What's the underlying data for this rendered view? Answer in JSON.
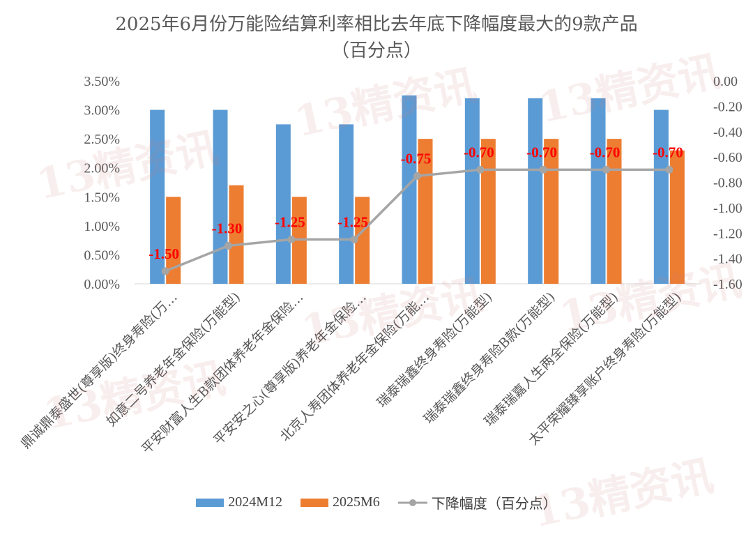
{
  "chart_data": {
    "type": "bar",
    "title": "2025年6月份万能险结算利率相比去年底下降幅度最大的9款产品",
    "subtitle": "（百分点）",
    "categories": [
      "鼎诚鼎泰盛世(尊享版)终身寿险(万…",
      "如意二号养老年金保险(万能型)",
      "平安财富人生B款团体养老年金保险…",
      "平安安之心(尊享版)养老年金保险…",
      "北京人寿团体养老年金保险(万能…",
      "瑞泰瑞鑫终身寿险(万能型)",
      "瑞泰瑞鑫终身寿险B款(万能型)",
      "瑞泰瑞嘉人生两全保险(万能型)",
      "太平荣耀臻享账户终身寿险(万能型)"
    ],
    "series": [
      {
        "name": "2024M12",
        "type": "bar",
        "axis": "left",
        "color": "#5b9bd5",
        "values": [
          3.0,
          3.0,
          2.75,
          2.75,
          3.25,
          3.2,
          3.2,
          3.2,
          3.0
        ]
      },
      {
        "name": "2025M6",
        "type": "bar",
        "axis": "left",
        "color": "#ed7d31",
        "values": [
          1.5,
          1.7,
          1.5,
          1.5,
          2.5,
          2.5,
          2.5,
          2.5,
          2.3
        ]
      },
      {
        "name": "下降幅度（百分点）",
        "type": "line",
        "axis": "right",
        "color": "#a5a5a5",
        "values": [
          -1.5,
          -1.3,
          -1.25,
          -1.25,
          -0.75,
          -0.7,
          -0.7,
          -0.7,
          -0.7
        ],
        "labels": [
          "-1.50",
          "-1.30",
          "-1.25",
          "-1.25",
          "-0.75",
          "-0.70",
          "-0.70",
          "-0.70",
          "-0.70"
        ],
        "label_color": "#ff0000"
      }
    ],
    "y_left": {
      "min": 0,
      "max": 0.035,
      "ticks": [
        "0.00%",
        "0.50%",
        "1.00%",
        "1.50%",
        "2.00%",
        "2.50%",
        "3.00%",
        "3.50%"
      ]
    },
    "y_right": {
      "min": -1.6,
      "max": 0.0,
      "ticks": [
        "-1.60",
        "-1.40",
        "-1.20",
        "-1.00",
        "-0.80",
        "-0.60",
        "-0.40",
        "-0.20",
        "0.00"
      ]
    },
    "legend_position": "bottom",
    "grid": false
  },
  "watermark": "13精资讯"
}
